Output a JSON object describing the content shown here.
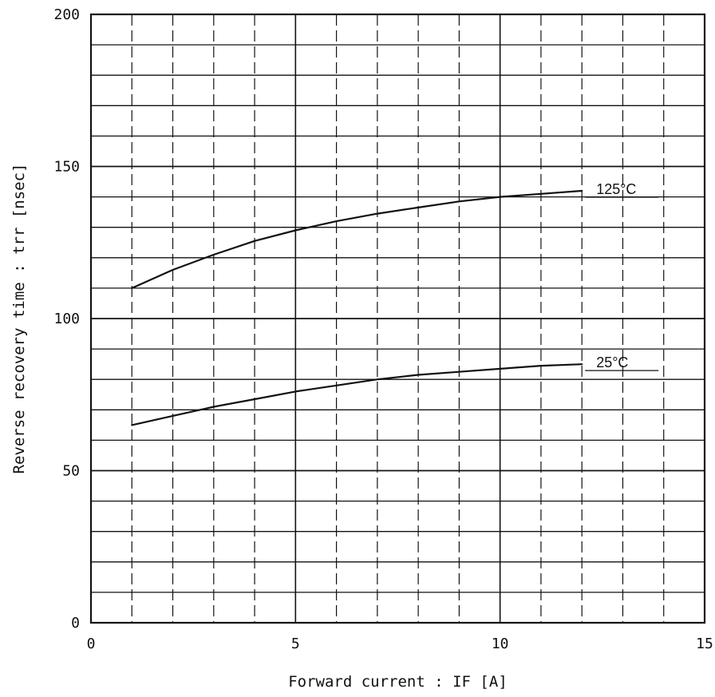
{
  "chart_data": {
    "type": "line",
    "title": "",
    "xlabel": "Forward current  :  IF  [A]",
    "ylabel": "Reverse recovery time :  trr  [nsec]",
    "xlim": [
      0,
      15
    ],
    "ylim": [
      0,
      200
    ],
    "x_ticks": [
      0,
      5,
      10,
      15
    ],
    "y_ticks": [
      0,
      50,
      100,
      150,
      200
    ],
    "x_tick_labels": [
      "0",
      "5",
      "10",
      "15"
    ],
    "y_tick_labels": [
      "0",
      "50",
      "100",
      "150",
      "200"
    ],
    "grid": true,
    "legend": "inline labels at line ends",
    "colors": {
      "line": "#111111",
      "grid": "#111111",
      "background": "#ffffff"
    },
    "series": [
      {
        "name": "125°C",
        "x": [
          1,
          2,
          3,
          4,
          5,
          6,
          7,
          8,
          9,
          10,
          11,
          12
        ],
        "y": [
          110,
          116,
          121,
          125.5,
          129,
          132,
          134.5,
          136.5,
          138.5,
          140,
          141,
          142
        ]
      },
      {
        "name": "25°C",
        "x": [
          1,
          2,
          3,
          4,
          5,
          6,
          7,
          8,
          9,
          10,
          11,
          12
        ],
        "y": [
          65,
          68,
          71,
          73.5,
          76,
          78,
          80,
          81.5,
          82.5,
          83.5,
          84.5,
          85
        ]
      }
    ]
  }
}
